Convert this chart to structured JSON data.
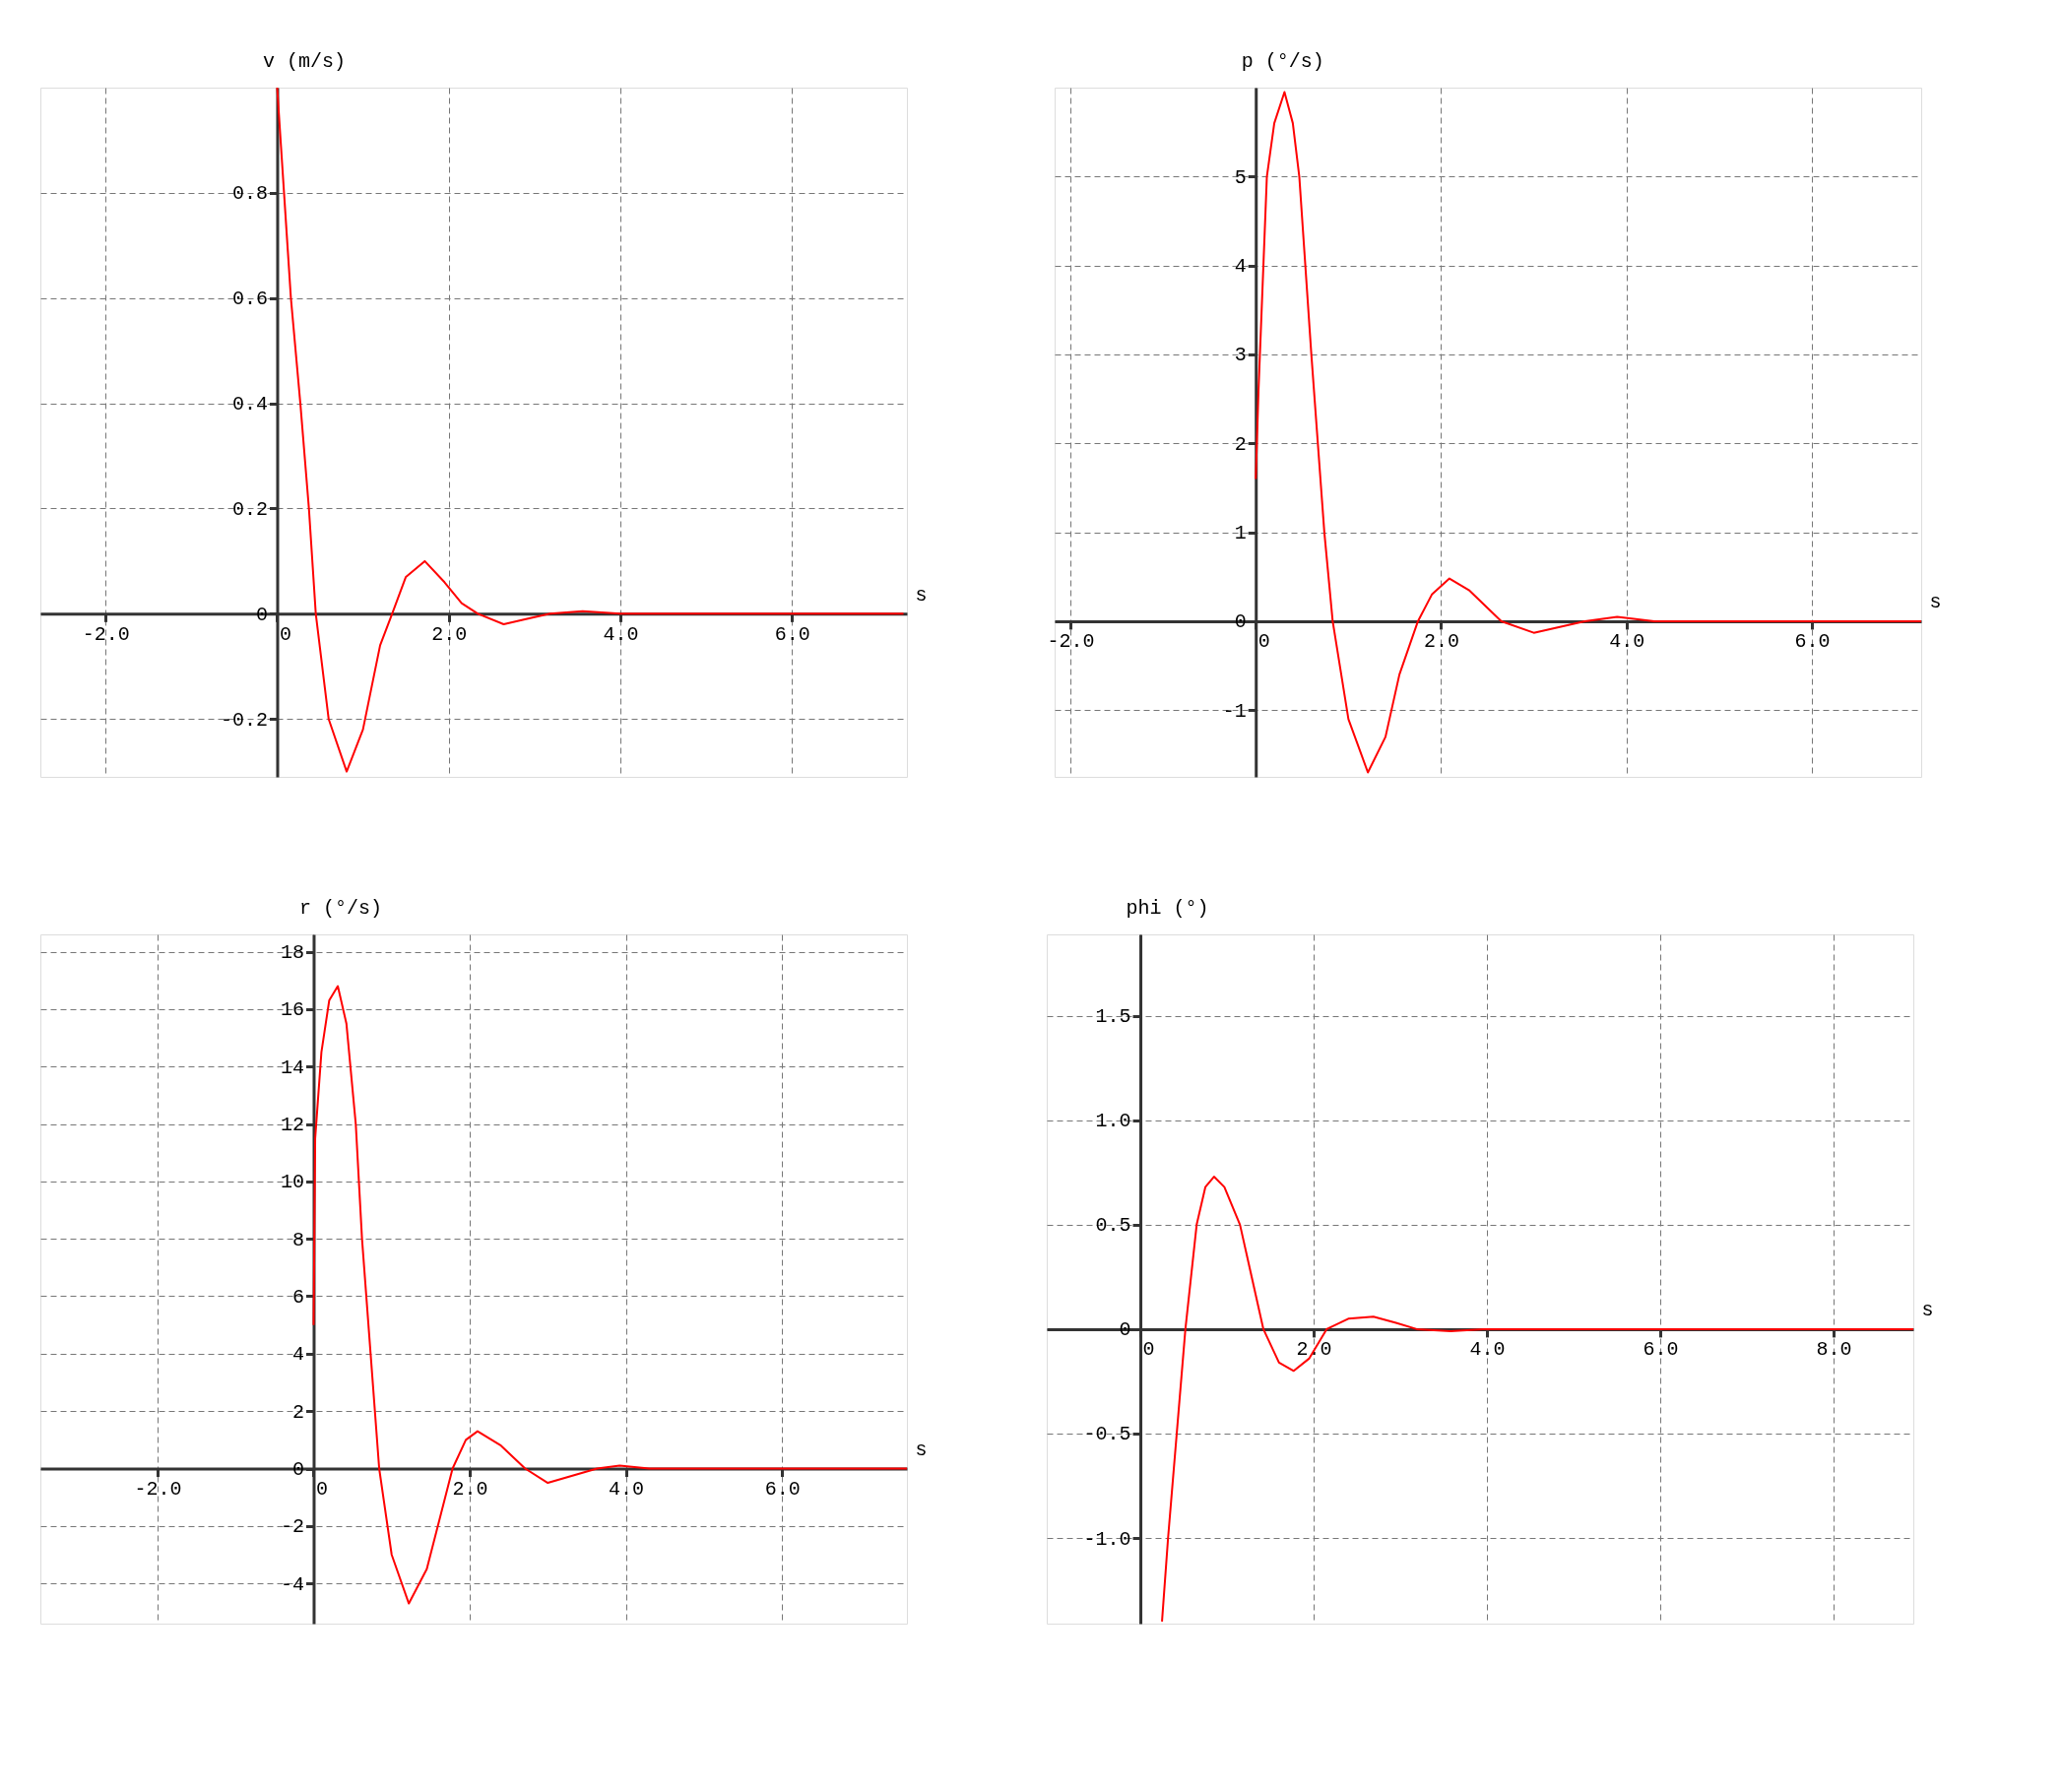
{
  "chart_data": [
    {
      "type": "line",
      "xlabel": "s",
      "ylabel": "v (m/s)",
      "color": "#ff0000",
      "grid": true,
      "xlim": [
        -2.76,
        7.34
      ],
      "ylim": [
        -0.31,
        1.0
      ],
      "xticks": [
        {
          "value": -2,
          "label": "-2.0"
        },
        0,
        {
          "value": 2,
          "label": "2.0"
        },
        {
          "value": 4,
          "label": "4.0"
        },
        {
          "value": 6,
          "label": "6.0"
        }
      ],
      "yticks": [
        -0.2,
        0,
        0.2,
        0.4,
        0.6,
        0.8
      ],
      "x": [
        0,
        0.08,
        0.16,
        0.27,
        0.37,
        0.45,
        0.6,
        0.81,
        1.0,
        1.2,
        1.34,
        1.5,
        1.72,
        1.95,
        2.15,
        2.34,
        2.64,
        2.9,
        3.18,
        3.56,
        4.0,
        5.0,
        6.0,
        7.3
      ],
      "values": [
        1.0,
        0.8,
        0.6,
        0.4,
        0.2,
        0.0,
        -0.2,
        -0.3,
        -0.22,
        -0.06,
        0.0,
        0.07,
        0.1,
        0.06,
        0.02,
        0.0,
        -0.02,
        -0.01,
        0.0,
        0.005,
        0.0,
        0.0,
        0.0,
        0.0
      ]
    },
    {
      "type": "line",
      "xlabel": "s",
      "ylabel": "p (°/s)",
      "color": "#ff0000",
      "grid": true,
      "xlim": [
        -2.17,
        7.18
      ],
      "ylim": [
        -1.75,
        6.0
      ],
      "xticks": [
        {
          "value": -2,
          "label": "-2.0"
        },
        0,
        {
          "value": 2,
          "label": "2.0"
        },
        {
          "value": 4,
          "label": "4.0"
        },
        {
          "value": 6,
          "label": "6.0"
        }
      ],
      "yticks": [
        -1,
        0,
        1,
        2,
        3,
        4,
        5
      ],
      "x": [
        0,
        0.03,
        0.12,
        0.2,
        0.31,
        0.4,
        0.47,
        0.6,
        0.74,
        0.83,
        1.0,
        1.21,
        1.4,
        1.55,
        1.75,
        1.9,
        2.09,
        2.3,
        2.65,
        3.0,
        3.55,
        3.9,
        4.3,
        5.0,
        6.0,
        7.18
      ],
      "values": [
        1.6,
        2.6,
        5.0,
        5.6,
        5.95,
        5.6,
        5.0,
        3.0,
        1.0,
        0.0,
        -1.1,
        -1.7,
        -1.3,
        -0.6,
        0.0,
        0.3,
        0.48,
        0.35,
        0.0,
        -0.13,
        0.0,
        0.05,
        0.0,
        0.0,
        0.0,
        0.0
      ]
    },
    {
      "type": "line",
      "xlabel": "s",
      "ylabel": "r (°/s)",
      "color": "#ff0000",
      "grid": true,
      "xlim": [
        -3.5,
        7.6
      ],
      "ylim": [
        -5.4,
        18.6
      ],
      "xticks": [
        {
          "value": -2,
          "label": "-2.0"
        },
        0,
        {
          "value": 2,
          "label": "2.0"
        },
        {
          "value": 4,
          "label": "4.0"
        },
        {
          "value": 6,
          "label": "6.0"
        }
      ],
      "yticks": [
        -4,
        -2,
        0,
        2,
        4,
        6,
        8,
        10,
        12,
        14,
        16,
        18
      ],
      "x": [
        0,
        0.02,
        0.1,
        0.2,
        0.31,
        0.42,
        0.54,
        0.62,
        0.73,
        0.84,
        1.0,
        1.22,
        1.45,
        1.78,
        1.95,
        2.1,
        2.4,
        2.71,
        3.0,
        3.63,
        3.92,
        4.3,
        5.0,
        6.0,
        7.6
      ],
      "values": [
        5.0,
        11.5,
        14.5,
        16.3,
        16.8,
        15.5,
        12.0,
        8.0,
        4.0,
        0.0,
        -3.0,
        -4.7,
        -3.5,
        0.0,
        1.0,
        1.3,
        0.8,
        0.0,
        -0.5,
        0.0,
        0.1,
        0.0,
        0.0,
        0.0,
        0.0
      ]
    },
    {
      "type": "line",
      "xlabel": "s",
      "ylabel": "phi (°)",
      "color": "#ff0000",
      "grid": true,
      "xlim": [
        -1.08,
        8.92
      ],
      "ylim": [
        -1.41,
        1.89
      ],
      "xticks": [
        0,
        {
          "value": 2,
          "label": "2.0"
        },
        {
          "value": 4,
          "label": "4.0"
        },
        {
          "value": 6,
          "label": "6.0"
        },
        {
          "value": 8,
          "label": "8.0"
        }
      ],
      "yticks": [
        {
          "value": -1,
          "label": "-1.0"
        },
        -0.5,
        0,
        0.5,
        {
          "value": 1,
          "label": "1.0"
        },
        1.5
      ],
      "x": [
        0.25,
        0.32,
        0.42,
        0.52,
        0.65,
        0.75,
        0.85,
        0.97,
        1.15,
        1.42,
        1.6,
        1.77,
        1.95,
        2.15,
        2.4,
        2.69,
        2.95,
        3.19,
        3.58,
        3.96,
        5.0,
        6.0,
        7.0,
        8.0,
        8.92
      ],
      "values": [
        -1.4,
        -1.0,
        -0.5,
        0.0,
        0.5,
        0.68,
        0.73,
        0.68,
        0.5,
        0.0,
        -0.16,
        -0.2,
        -0.14,
        0.0,
        0.05,
        0.06,
        0.03,
        0.0,
        -0.01,
        0.0,
        0.0,
        0.0,
        0.0,
        0.0,
        0.0
      ]
    }
  ]
}
